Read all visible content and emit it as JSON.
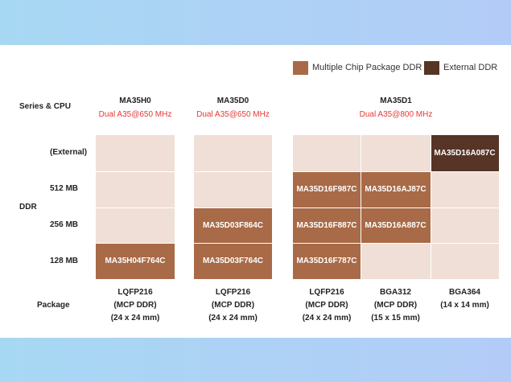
{
  "legend": {
    "mcp": {
      "label": "Multiple Chip Package DDR",
      "color": "#a86a47"
    },
    "external": {
      "label": "External DDR",
      "color": "#563426"
    }
  },
  "labels": {
    "series_cpu": "Series & CPU",
    "ddr": "DDR",
    "package": "Package"
  },
  "rows": [
    "(External)",
    "512 MB",
    "256 MB",
    "128 MB"
  ],
  "series": [
    {
      "name": "MA35H0",
      "cpu": "Dual A35@650 MHz"
    },
    {
      "name": "MA35D0",
      "cpu": "Dual A35@650 MHz"
    },
    {
      "name": "MA35D1",
      "cpu": "Dual A35@800 MHz"
    }
  ],
  "parts": {
    "h0_128": "MA35H04F764C",
    "d0_256": "MA35D03F864C",
    "d0_128": "MA35D03F764C",
    "d1_lqfp_512": "MA35D16F987C",
    "d1_lqfp_256": "MA35D16F887C",
    "d1_lqfp_128": "MA35D16F787C",
    "d1_bga312_512": "MA35D16AJ87C",
    "d1_bga312_256": "MA35D16A887C",
    "d1_bga364_ext": "MA35D16A087C"
  },
  "packages": [
    {
      "name": "LQFP216",
      "type": "(MCP DDR)",
      "size": "(24 x 24 mm)"
    },
    {
      "name": "LQFP216",
      "type": "(MCP DDR)",
      "size": "(24 x 24 mm)"
    },
    {
      "name": "LQFP216",
      "type": "(MCP DDR)",
      "size": "(24 x 24 mm)"
    },
    {
      "name": "BGA312",
      "type": "(MCP DDR)",
      "size": "(15 x 15 mm)"
    },
    {
      "name": "BGA364",
      "type": "(14 x 14 mm)",
      "size": ""
    }
  ]
}
